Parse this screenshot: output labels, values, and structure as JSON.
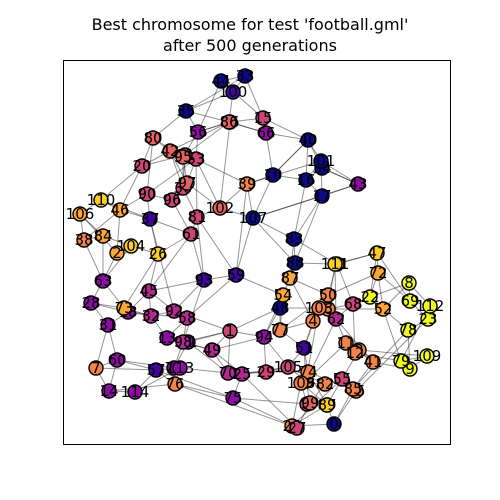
{
  "title_line1": "Best chromosome for test 'football.gml'",
  "title_line2": "after 500 generations",
  "palette": [
    "#0d0887",
    "#41049d",
    "#6a00a8",
    "#8f0da4",
    "#b12a90",
    "#cc4778",
    "#e16462",
    "#f2844b",
    "#fca636",
    "#fcce25",
    "#f0f921"
  ],
  "nodes": [
    {
      "id": "0",
      "c": 0
    },
    {
      "id": "1",
      "c": 5
    },
    {
      "id": "2",
      "c": 8
    },
    {
      "id": "3",
      "c": 7
    },
    {
      "id": "4",
      "c": 7
    },
    {
      "id": "5",
      "c": 5
    },
    {
      "id": "6",
      "c": 7
    },
    {
      "id": "7",
      "c": 7
    },
    {
      "id": "8",
      "c": 10
    },
    {
      "id": "9",
      "c": 10
    },
    {
      "id": "10",
      "c": 0
    },
    {
      "id": "11",
      "c": 7
    },
    {
      "id": "12",
      "c": 7
    },
    {
      "id": "13",
      "c": 3
    },
    {
      "id": "14",
      "c": 3
    },
    {
      "id": "15",
      "c": 5
    },
    {
      "id": "16",
      "c": 0
    },
    {
      "id": "17",
      "c": 0
    },
    {
      "id": "18",
      "c": 3
    },
    {
      "id": "19",
      "c": 8
    },
    {
      "id": "20",
      "c": 5
    },
    {
      "id": "21",
      "c": 3
    },
    {
      "id": "22",
      "c": 10
    },
    {
      "id": "23",
      "c": 10
    },
    {
      "id": "24",
      "c": 7
    },
    {
      "id": "25",
      "c": 4
    },
    {
      "id": "26",
      "c": 9
    },
    {
      "id": "27",
      "c": 5
    },
    {
      "id": "28",
      "c": 3
    },
    {
      "id": "29",
      "c": 5
    },
    {
      "id": "30",
      "c": 5
    },
    {
      "id": "31",
      "c": 3
    },
    {
      "id": "32",
      "c": 4
    },
    {
      "id": "33",
      "c": 0
    },
    {
      "id": "34",
      "c": 0
    },
    {
      "id": "35",
      "c": 0
    },
    {
      "id": "36",
      "c": 5
    },
    {
      "id": "37",
      "c": 1
    },
    {
      "id": "38",
      "c": 7
    },
    {
      "id": "39",
      "c": 7
    },
    {
      "id": "40",
      "c": 0
    },
    {
      "id": "41",
      "c": 7
    },
    {
      "id": "42",
      "c": 6
    },
    {
      "id": "43",
      "c": 3
    },
    {
      "id": "44",
      "c": 0
    },
    {
      "id": "45",
      "c": 4
    },
    {
      "id": "46",
      "c": 8
    },
    {
      "id": "47",
      "c": 9
    },
    {
      "id": "48",
      "c": 0
    },
    {
      "id": "49",
      "c": 4
    },
    {
      "id": "50",
      "c": 7
    },
    {
      "id": "51",
      "c": 1
    },
    {
      "id": "52",
      "c": 8
    },
    {
      "id": "53",
      "c": 5
    },
    {
      "id": "54",
      "c": 8
    },
    {
      "id": "55",
      "c": 5
    },
    {
      "id": "56",
      "c": 3
    },
    {
      "id": "57",
      "c": 1
    },
    {
      "id": "58",
      "c": 4
    },
    {
      "id": "59",
      "c": 1
    },
    {
      "id": "60",
      "c": 3
    },
    {
      "id": "61",
      "c": 5
    },
    {
      "id": "62",
      "c": 4
    },
    {
      "id": "63",
      "c": 3
    },
    {
      "id": "64",
      "c": 7
    },
    {
      "id": "65",
      "c": 7
    },
    {
      "id": "66",
      "c": 3
    },
    {
      "id": "67",
      "c": 6
    },
    {
      "id": "68",
      "c": 5
    },
    {
      "id": "69",
      "c": 10
    },
    {
      "id": "70",
      "c": 4
    },
    {
      "id": "71",
      "c": 3
    },
    {
      "id": "72",
      "c": 8
    },
    {
      "id": "73",
      "c": 8
    },
    {
      "id": "74",
      "c": 7
    },
    {
      "id": "75",
      "c": 3
    },
    {
      "id": "76",
      "c": 7
    },
    {
      "id": "77",
      "c": 7
    },
    {
      "id": "78",
      "c": 10
    },
    {
      "id": "79",
      "c": 10
    },
    {
      "id": "80",
      "c": 6
    },
    {
      "id": "81",
      "c": 5
    },
    {
      "id": "82",
      "c": 7
    },
    {
      "id": "83",
      "c": 0
    },
    {
      "id": "84",
      "c": 8
    },
    {
      "id": "85",
      "c": 7
    },
    {
      "id": "86",
      "c": 6
    },
    {
      "id": "87",
      "c": 8
    },
    {
      "id": "88",
      "c": 0
    },
    {
      "id": "89",
      "c": 9
    },
    {
      "id": "90",
      "c": 5
    },
    {
      "id": "91",
      "c": 6
    },
    {
      "id": "92",
      "c": 4
    },
    {
      "id": "93",
      "c": 1
    },
    {
      "id": "94",
      "c": 3
    },
    {
      "id": "95",
      "c": 6
    },
    {
      "id": "96",
      "c": 5
    },
    {
      "id": "97",
      "c": 6
    },
    {
      "id": "98",
      "c": 4
    },
    {
      "id": "99",
      "c": 6
    },
    {
      "id": "100",
      "c": 1
    },
    {
      "id": "101",
      "c": 0
    },
    {
      "id": "102",
      "c": 6
    },
    {
      "id": "103",
      "c": 7
    },
    {
      "id": "104",
      "c": 9
    },
    {
      "id": "105",
      "c": 5
    },
    {
      "id": "106",
      "c": 8
    },
    {
      "id": "107",
      "c": 0
    },
    {
      "id": "108",
      "c": 7
    },
    {
      "id": "109",
      "c": 10
    },
    {
      "id": "110",
      "c": 9
    },
    {
      "id": "111",
      "c": 9
    },
    {
      "id": "112",
      "c": 10
    },
    {
      "id": "113",
      "c": 3
    },
    {
      "id": "114",
      "c": 3
    }
  ]
}
